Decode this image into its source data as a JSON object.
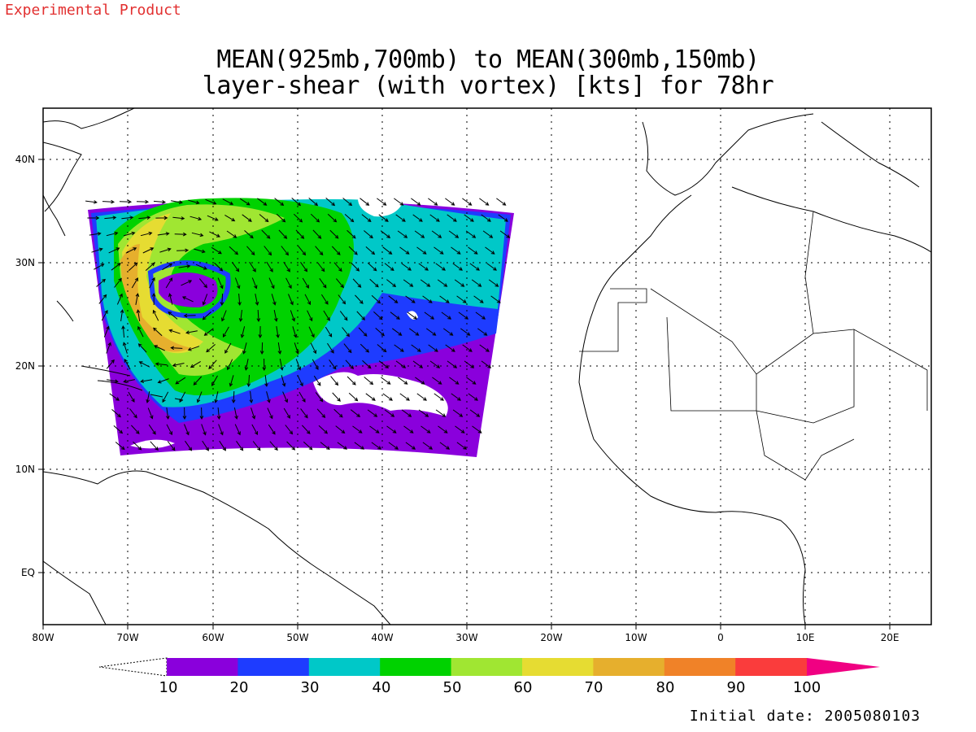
{
  "header": {
    "product_tag": "Experimental Product",
    "title_line1": "MEAN(925mb,700mb) to MEAN(300mb,150mb)",
    "title_line2": "layer-shear (with vortex) [kts] for 78hr"
  },
  "footer": {
    "initial_date": "Initial date: 2005080103"
  },
  "map": {
    "lon_ticks": [
      "80W",
      "70W",
      "60W",
      "50W",
      "40W",
      "30W",
      "20W",
      "10W",
      "0",
      "10E",
      "20E"
    ],
    "lat_ticks": [
      "40N",
      "30N",
      "20N",
      "10N",
      "EQ"
    ],
    "region": "Tropical North Atlantic and West Africa",
    "grid": "dotted"
  },
  "colorbar": {
    "labels": [
      "10",
      "20",
      "30",
      "40",
      "50",
      "60",
      "70",
      "80",
      "90",
      "100"
    ],
    "colors": [
      "#8a00dc",
      "#1e3cff",
      "#00c8c8",
      "#00d200",
      "#a0e632",
      "#e6dc32",
      "#e6af2d",
      "#f08228",
      "#fa3c3c",
      "#f00082"
    ],
    "units": "kts"
  }
}
